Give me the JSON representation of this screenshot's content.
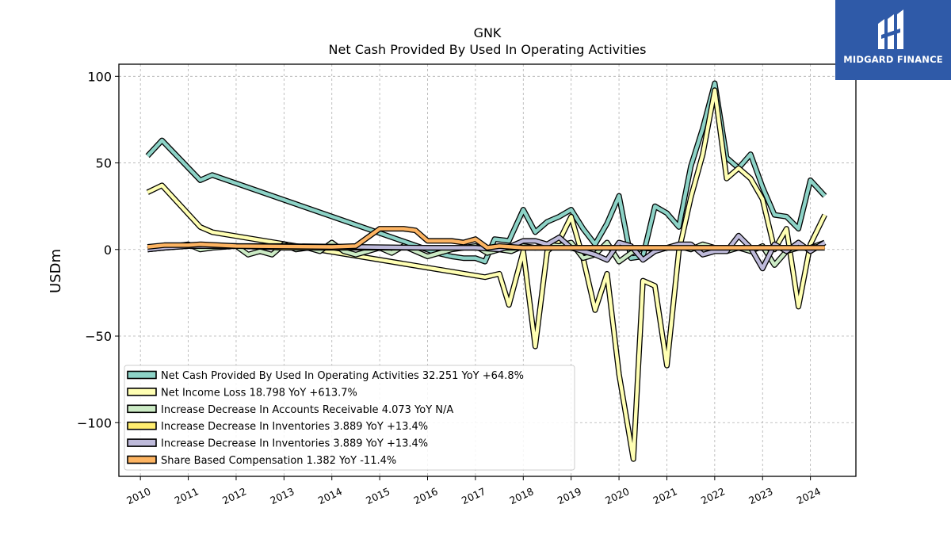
{
  "brand": {
    "name": "MIDGARD FINANCE",
    "color": "#2f5aa8"
  },
  "chart_data": {
    "type": "line",
    "title": "GNK",
    "subtitle": "Net Cash Provided By Used In Operating Activities",
    "xlabel": "",
    "ylabel": "USDm",
    "xlim": [
      2009.55,
      2024.95
    ],
    "ylim": [
      -131,
      107
    ],
    "xticks": [
      "2010",
      "2011",
      "2012",
      "2013",
      "2014",
      "2015",
      "2016",
      "2017",
      "2018",
      "2019",
      "2020",
      "2021",
      "2022",
      "2023",
      "2024"
    ],
    "yticks": [
      -100,
      -50,
      0,
      50,
      100
    ],
    "ytick_labels": [
      "−100",
      "−50",
      "0",
      "50",
      "100"
    ],
    "grid": true,
    "legend_position": "lower-left",
    "series": [
      {
        "name": "Net Cash Provided By Used In Operating Activities",
        "legend": "Net Cash Provided By Used In Operating Activities  32.251 YoY +64.8%",
        "color": "#8dd3c7",
        "points": [
          [
            2010.15,
            54
          ],
          [
            2010.45,
            63
          ],
          [
            2011.25,
            40
          ],
          [
            2011.5,
            43
          ],
          [
            2016.2,
            -2
          ],
          [
            2016.5,
            -4
          ],
          [
            2016.75,
            -5
          ],
          [
            2017.0,
            -5
          ],
          [
            2017.2,
            -7
          ],
          [
            2017.4,
            6
          ],
          [
            2017.7,
            5
          ],
          [
            2018.0,
            23
          ],
          [
            2018.25,
            10
          ],
          [
            2018.5,
            16
          ],
          [
            2018.75,
            19
          ],
          [
            2019.0,
            23
          ],
          [
            2019.25,
            12
          ],
          [
            2019.5,
            3
          ],
          [
            2019.75,
            15
          ],
          [
            2020.0,
            31
          ],
          [
            2020.25,
            -5
          ],
          [
            2020.5,
            -4
          ],
          [
            2020.75,
            25
          ],
          [
            2021.0,
            21
          ],
          [
            2021.25,
            13
          ],
          [
            2021.5,
            48
          ],
          [
            2021.75,
            70
          ],
          [
            2022.0,
            96
          ],
          [
            2022.25,
            53
          ],
          [
            2022.5,
            47
          ],
          [
            2022.75,
            55
          ],
          [
            2023.0,
            36
          ],
          [
            2023.25,
            20
          ],
          [
            2023.5,
            19
          ],
          [
            2023.75,
            12
          ],
          [
            2024.0,
            40
          ],
          [
            2024.3,
            31
          ]
        ]
      },
      {
        "name": "Net Income Loss",
        "legend": "Net Income Loss  18.798 YoY +613.7%",
        "color": "#ffffb3",
        "points": [
          [
            2010.15,
            33
          ],
          [
            2010.45,
            37
          ],
          [
            2011.25,
            13
          ],
          [
            2011.5,
            10
          ],
          [
            2017.2,
            -16
          ],
          [
            2017.5,
            -14
          ],
          [
            2017.7,
            -32
          ],
          [
            2018.0,
            -1
          ],
          [
            2018.25,
            -56
          ],
          [
            2018.5,
            -1
          ],
          [
            2018.75,
            5
          ],
          [
            2019.0,
            19
          ],
          [
            2019.25,
            -5
          ],
          [
            2019.5,
            -35
          ],
          [
            2019.75,
            -14
          ],
          [
            2020.0,
            -72
          ],
          [
            2020.3,
            -121
          ],
          [
            2020.5,
            -18
          ],
          [
            2020.75,
            -21
          ],
          [
            2021.0,
            -67
          ],
          [
            2021.25,
            -1
          ],
          [
            2021.5,
            30
          ],
          [
            2021.75,
            55
          ],
          [
            2022.0,
            92
          ],
          [
            2022.25,
            41
          ],
          [
            2022.5,
            47
          ],
          [
            2022.75,
            41
          ],
          [
            2023.0,
            29
          ],
          [
            2023.25,
            0
          ],
          [
            2023.5,
            12
          ],
          [
            2023.75,
            -33
          ],
          [
            2024.0,
            3
          ],
          [
            2024.3,
            20
          ]
        ]
      },
      {
        "name": "Increase Decrease In Accounts Receivable",
        "legend": "Increase Decrease In Accounts Receivable  4.073 YoY N/A",
        "color": "#ccebc5",
        "points": [
          [
            2010.15,
            0
          ],
          [
            2010.45,
            1
          ],
          [
            2011.0,
            3
          ],
          [
            2011.25,
            0
          ],
          [
            2011.5,
            1
          ],
          [
            2012.0,
            2
          ],
          [
            2012.25,
            -3
          ],
          [
            2012.5,
            -1
          ],
          [
            2012.75,
            -3
          ],
          [
            2013.0,
            3
          ],
          [
            2013.25,
            0
          ],
          [
            2013.5,
            1
          ],
          [
            2013.75,
            -1
          ],
          [
            2014.0,
            4
          ],
          [
            2014.25,
            -1
          ],
          [
            2014.5,
            -3
          ],
          [
            2014.75,
            -1
          ],
          [
            2015.0,
            1
          ],
          [
            2015.25,
            -2
          ],
          [
            2015.5,
            2
          ],
          [
            2015.75,
            -1
          ],
          [
            2016.0,
            -4
          ],
          [
            2016.5,
            0
          ],
          [
            2017.0,
            2
          ],
          [
            2017.25,
            -2
          ],
          [
            2017.5,
            0
          ],
          [
            2017.75,
            -1
          ],
          [
            2018.0,
            2
          ],
          [
            2018.25,
            1
          ],
          [
            2018.5,
            3
          ],
          [
            2018.75,
            2
          ],
          [
            2019.0,
            4
          ],
          [
            2019.25,
            -5
          ],
          [
            2019.5,
            -3
          ],
          [
            2019.75,
            4
          ],
          [
            2020.0,
            -7
          ],
          [
            2020.25,
            -2
          ],
          [
            2020.5,
            1
          ],
          [
            2020.75,
            0
          ],
          [
            2021.0,
            1
          ],
          [
            2021.25,
            2
          ],
          [
            2021.5,
            0
          ],
          [
            2021.75,
            3
          ],
          [
            2022.0,
            1
          ],
          [
            2022.25,
            -1
          ],
          [
            2022.5,
            1
          ],
          [
            2022.75,
            -1
          ],
          [
            2023.0,
            2
          ],
          [
            2023.25,
            -9
          ],
          [
            2023.5,
            -1
          ],
          [
            2023.75,
            1
          ],
          [
            2024.0,
            1
          ],
          [
            2024.3,
            4
          ]
        ]
      },
      {
        "name": "Increase Decrease In Inventories",
        "legend": "Increase Decrease In Inventories  3.889 YoY +13.4%",
        "color": "#ffed6f",
        "points": [
          [
            2010.15,
            0
          ],
          [
            2010.5,
            1
          ],
          [
            2011.0,
            2
          ],
          [
            2012.0,
            2
          ],
          [
            2013.0,
            1
          ],
          [
            2014.0,
            1
          ],
          [
            2015.0,
            1
          ],
          [
            2016.0,
            1
          ],
          [
            2017.0,
            1
          ],
          [
            2018.0,
            1
          ],
          [
            2019.0,
            1
          ],
          [
            2020.0,
            1
          ],
          [
            2021.0,
            1
          ],
          [
            2022.0,
            1
          ],
          [
            2023.0,
            1
          ],
          [
            2024.0,
            1
          ],
          [
            2024.3,
            2
          ]
        ]
      },
      {
        "name": "Increase Decrease In Inventories",
        "legend": "Increase Decrease In Inventories  3.889 YoY +13.4%",
        "color": "#bebada",
        "points": [
          [
            2010.15,
            0
          ],
          [
            2010.5,
            1
          ],
          [
            2011.0,
            2
          ],
          [
            2013.0,
            2
          ],
          [
            2016.0,
            1
          ],
          [
            2017.0,
            1
          ],
          [
            2017.5,
            0
          ],
          [
            2017.75,
            2
          ],
          [
            2018.0,
            5
          ],
          [
            2018.25,
            5
          ],
          [
            2018.5,
            3
          ],
          [
            2018.75,
            7
          ],
          [
            2019.0,
            1
          ],
          [
            2019.25,
            -1
          ],
          [
            2019.5,
            -3
          ],
          [
            2019.75,
            -6
          ],
          [
            2020.0,
            4
          ],
          [
            2020.25,
            2
          ],
          [
            2020.5,
            -6
          ],
          [
            2020.75,
            -1
          ],
          [
            2021.0,
            1
          ],
          [
            2021.25,
            3
          ],
          [
            2021.5,
            3
          ],
          [
            2021.75,
            -3
          ],
          [
            2022.0,
            -1
          ],
          [
            2022.25,
            -1
          ],
          [
            2022.5,
            8
          ],
          [
            2022.75,
            1
          ],
          [
            2023.0,
            -11
          ],
          [
            2023.25,
            3
          ],
          [
            2023.5,
            -1
          ],
          [
            2023.75,
            4
          ],
          [
            2024.0,
            -1
          ],
          [
            2024.3,
            4
          ]
        ]
      },
      {
        "name": "Share Based Compensation",
        "legend": "Share Based Compensation  1.382 YoY -11.4%",
        "color": "#fdb462",
        "points": [
          [
            2010.15,
            1.5
          ],
          [
            2010.5,
            2.5
          ],
          [
            2011.0,
            2.5
          ],
          [
            2011.25,
            3
          ],
          [
            2012.0,
            2
          ],
          [
            2014.0,
            1.5
          ],
          [
            2014.5,
            2
          ],
          [
            2014.75,
            7
          ],
          [
            2015.0,
            12
          ],
          [
            2015.5,
            12
          ],
          [
            2015.75,
            11
          ],
          [
            2016.0,
            5
          ],
          [
            2016.5,
            5
          ],
          [
            2016.75,
            4
          ],
          [
            2017.0,
            6
          ],
          [
            2017.25,
            1
          ],
          [
            2017.5,
            2
          ],
          [
            2018.0,
            1
          ],
          [
            2019.0,
            1
          ],
          [
            2024.3,
            1
          ]
        ]
      }
    ]
  }
}
